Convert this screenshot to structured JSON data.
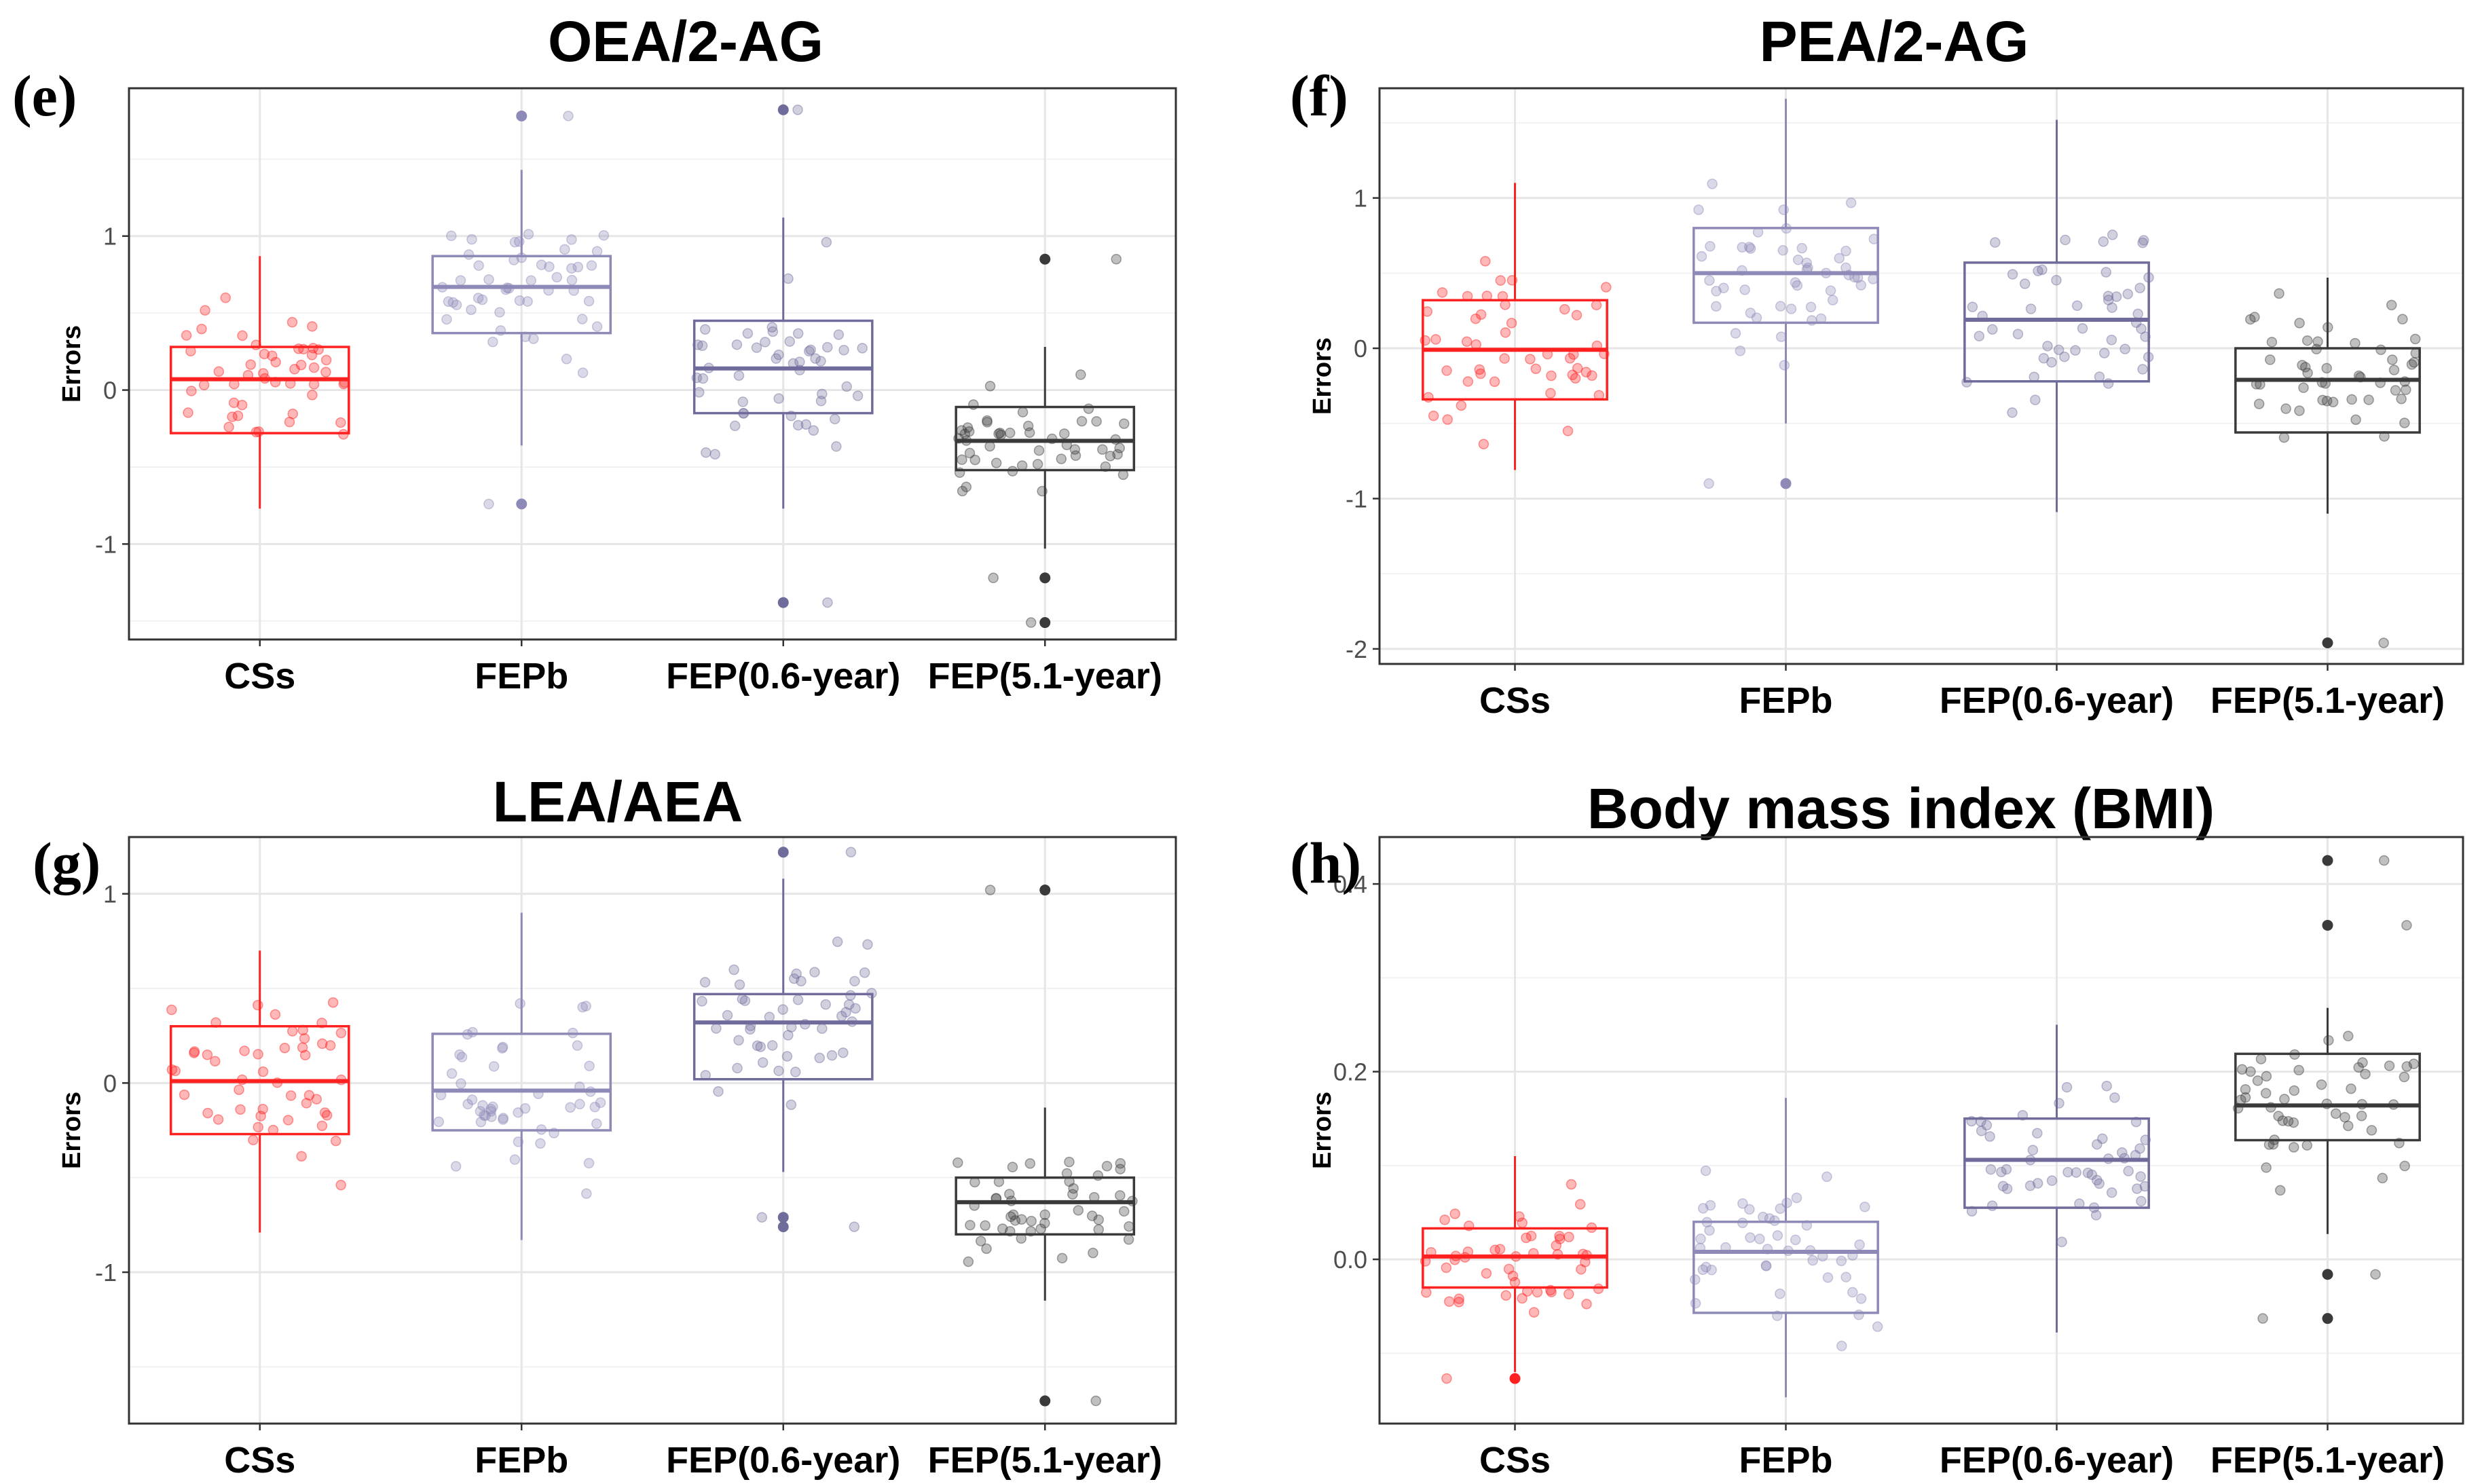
{
  "chart_data": [
    {
      "type": "box",
      "label": "(e)",
      "title": "OEA/2-AG",
      "ylabel": "Errors",
      "ylim": [
        -1.62,
        1.96
      ],
      "yticks": [
        -1,
        0,
        1
      ],
      "categories": [
        "CSs",
        "FEPb",
        "FEP(0.6-year)",
        "FEP(5.1-year)"
      ],
      "boxes": [
        {
          "name": "CSs",
          "color": "#ff2020",
          "q1": -0.28,
          "median": 0.07,
          "q3": 0.28,
          "lower": -0.77,
          "upper": 0.87,
          "outliers": []
        },
        {
          "name": "FEPb",
          "color": "#8d8ab8",
          "q1": 0.37,
          "median": 0.67,
          "q3": 0.87,
          "lower": -0.36,
          "upper": 1.43,
          "outliers": [
            1.78,
            -0.74
          ]
        },
        {
          "name": "FEP(0.6-year)",
          "color": "#6f6c9c",
          "q1": -0.15,
          "median": 0.14,
          "q3": 0.45,
          "lower": -0.77,
          "upper": 1.12,
          "outliers": [
            1.82,
            -1.38
          ]
        },
        {
          "name": "FEP(5.1-year)",
          "color": "#3a3a3a",
          "q1": -0.52,
          "median": -0.33,
          "q3": -0.11,
          "lower": -1.03,
          "upper": 0.28,
          "outliers": [
            0.85,
            -1.22,
            -1.51
          ]
        }
      ]
    },
    {
      "type": "box",
      "label": "(f)",
      "title": "PEA/2-AG",
      "ylabel": "Errors",
      "ylim": [
        -2.1,
        1.73
      ],
      "yticks": [
        -2,
        -1,
        0,
        1
      ],
      "categories": [
        "CSs",
        "FEPb",
        "FEP(0.6-year)",
        "FEP(5.1-year)"
      ],
      "boxes": [
        {
          "name": "CSs",
          "color": "#ff2020",
          "q1": -0.34,
          "median": -0.01,
          "q3": 0.32,
          "lower": -0.81,
          "upper": 1.1,
          "outliers": []
        },
        {
          "name": "FEPb",
          "color": "#8d8ab8",
          "q1": 0.17,
          "median": 0.5,
          "q3": 0.8,
          "lower": -0.5,
          "upper": 1.66,
          "outliers": [
            -0.9
          ]
        },
        {
          "name": "FEP(0.6-year)",
          "color": "#6f6c9c",
          "q1": -0.22,
          "median": 0.19,
          "q3": 0.57,
          "lower": -1.09,
          "upper": 1.52,
          "outliers": []
        },
        {
          "name": "FEP(5.1-year)",
          "color": "#3a3a3a",
          "q1": -0.56,
          "median": -0.21,
          "q3": 0.0,
          "lower": -1.1,
          "upper": 0.47,
          "outliers": [
            -1.96
          ]
        }
      ]
    },
    {
      "type": "box",
      "label": "(g)",
      "title": "LEA/AEA",
      "ylabel": "Errors",
      "ylim": [
        -1.8,
        1.3
      ],
      "yticks": [
        -1,
        0,
        1
      ],
      "categories": [
        "CSs",
        "FEPb",
        "FEP(0.6-year)",
        "FEP(5.1-year)"
      ],
      "boxes": [
        {
          "name": "CSs",
          "color": "#ff2020",
          "q1": -0.27,
          "median": 0.01,
          "q3": 0.3,
          "lower": -0.79,
          "upper": 0.7,
          "outliers": []
        },
        {
          "name": "FEPb",
          "color": "#8d8ab8",
          "q1": -0.25,
          "median": -0.04,
          "q3": 0.26,
          "lower": -0.83,
          "upper": 0.9,
          "outliers": []
        },
        {
          "name": "FEP(0.6-year)",
          "color": "#6f6c9c",
          "q1": 0.02,
          "median": 0.32,
          "q3": 0.47,
          "lower": -0.47,
          "upper": 1.08,
          "outliers": [
            1.22,
            -0.71,
            -0.76
          ]
        },
        {
          "name": "FEP(5.1-year)",
          "color": "#3a3a3a",
          "q1": -0.8,
          "median": -0.63,
          "q3": -0.5,
          "lower": -1.15,
          "upper": -0.13,
          "outliers": [
            1.02,
            -1.68
          ]
        }
      ]
    },
    {
      "type": "box",
      "label": "(h)",
      "title": "Body mass index (BMI)",
      "ylabel": "Errors",
      "ylim": [
        -0.175,
        0.45
      ],
      "yticks": [
        0.0,
        0.2,
        0.4
      ],
      "ytick_labels": [
        "0.0",
        "0.2",
        "0.4"
      ],
      "categories": [
        "CSs",
        "FEPb",
        "FEP(0.6-year)",
        "FEP(5.1-year)"
      ],
      "boxes": [
        {
          "name": "CSs",
          "color": "#ff2020",
          "q1": -0.03,
          "median": 0.003,
          "q3": 0.033,
          "lower": -0.12,
          "upper": 0.11,
          "outliers": [
            -0.127
          ]
        },
        {
          "name": "FEPb",
          "color": "#8d8ab8",
          "q1": -0.057,
          "median": 0.008,
          "q3": 0.04,
          "lower": -0.147,
          "upper": 0.172,
          "outliers": []
        },
        {
          "name": "FEP(0.6-year)",
          "color": "#6f6c9c",
          "q1": 0.055,
          "median": 0.106,
          "q3": 0.15,
          "lower": -0.078,
          "upper": 0.25,
          "outliers": []
        },
        {
          "name": "FEP(5.1-year)",
          "color": "#3a3a3a",
          "q1": 0.127,
          "median": 0.164,
          "q3": 0.219,
          "lower": 0.027,
          "upper": 0.268,
          "outliers": [
            0.425,
            0.356,
            -0.016,
            -0.063
          ]
        }
      ]
    }
  ]
}
